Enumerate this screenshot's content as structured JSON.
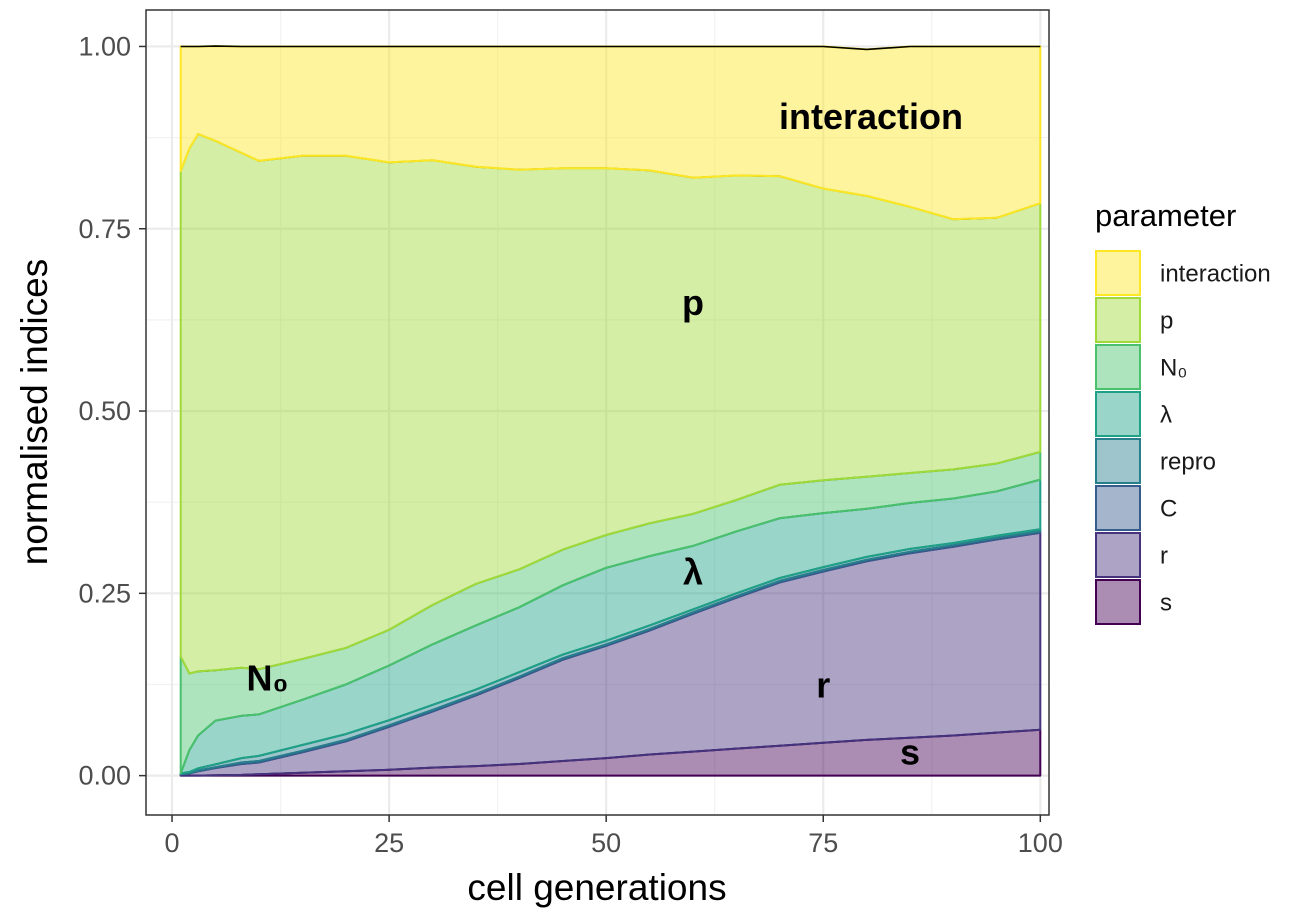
{
  "chart_data": {
    "type": "area",
    "stacked": true,
    "title": "",
    "xlabel": "cell generations",
    "ylabel": "normalised indices",
    "xlim": [
      -3,
      101
    ],
    "ylim": [
      -0.054,
      1.05
    ],
    "x_ticks": [
      0,
      25,
      50,
      75,
      100
    ],
    "x_tick_labels": [
      "0",
      "25",
      "50",
      "75",
      "100"
    ],
    "y_ticks": [
      0,
      0.25,
      0.5,
      0.75,
      1
    ],
    "y_tick_labels": [
      "0.00",
      "0.25",
      "0.50",
      "0.75",
      "1.00"
    ],
    "grid": true,
    "legend": {
      "title": "parameter",
      "position": "right"
    },
    "x": [
      1,
      2,
      3,
      5,
      8,
      10,
      15,
      20,
      25,
      30,
      35,
      40,
      45,
      50,
      55,
      60,
      65,
      70,
      75,
      80,
      85,
      90,
      95,
      100
    ],
    "series": [
      {
        "name": "s",
        "color": "#440154",
        "values": [
          0,
          0,
          0,
          0.0005,
          0.001,
          0.002,
          0.004,
          0.006,
          0.008,
          0.011,
          0.013,
          0.016,
          0.02,
          0.024,
          0.029,
          0.033,
          0.037,
          0.041,
          0.045,
          0.049,
          0.052,
          0.055,
          0.059,
          0.063
        ]
      },
      {
        "name": "r",
        "color": "#46337e",
        "values": [
          0.002,
          0.003,
          0.006,
          0.01,
          0.015,
          0.016,
          0.028,
          0.041,
          0.059,
          0.077,
          0.097,
          0.118,
          0.139,
          0.154,
          0.17,
          0.189,
          0.207,
          0.224,
          0.235,
          0.245,
          0.253,
          0.259,
          0.265,
          0.27
        ]
      },
      {
        "name": "C",
        "color": "#365c8d",
        "values": [
          0,
          0,
          0.001,
          0.001,
          0.002,
          0.002,
          0.002,
          0.002,
          0.002,
          0.002,
          0.002,
          0.002,
          0.002,
          0.002,
          0.002,
          0.002,
          0.002,
          0.002,
          0.002,
          0.002,
          0.002,
          0.002,
          0.002,
          0.002
        ]
      },
      {
        "name": "repro",
        "color": "#277f8e",
        "values": [
          0.001,
          0.002,
          0.003,
          0.004,
          0.006,
          0.007,
          0.008,
          0.008,
          0.007,
          0.007,
          0.006,
          0.006,
          0.005,
          0.005,
          0.005,
          0.004,
          0.004,
          0.004,
          0.004,
          0.004,
          0.004,
          0.003,
          0.003,
          0.003
        ]
      },
      {
        "name": "λ",
        "color": "#1fa187",
        "values": [
          0,
          0.03,
          0.045,
          0.06,
          0.058,
          0.057,
          0.062,
          0.068,
          0.075,
          0.083,
          0.088,
          0.089,
          0.095,
          0.1,
          0.095,
          0.087,
          0.085,
          0.082,
          0.074,
          0.066,
          0.063,
          0.061,
          0.061,
          0.068
        ]
      },
      {
        "name": "N₀",
        "color": "#4ac16d",
        "values": [
          0.16,
          0.105,
          0.088,
          0.069,
          0.066,
          0.062,
          0.056,
          0.05,
          0.049,
          0.054,
          0.057,
          0.052,
          0.049,
          0.045,
          0.045,
          0.044,
          0.043,
          0.046,
          0.045,
          0.044,
          0.041,
          0.04,
          0.038,
          0.038
        ]
      },
      {
        "name": "p",
        "color": "#a0da39",
        "values": [
          0.666,
          0.72,
          0.737,
          0.726,
          0.706,
          0.697,
          0.69,
          0.675,
          0.641,
          0.61,
          0.572,
          0.548,
          0.523,
          0.503,
          0.484,
          0.461,
          0.445,
          0.423,
          0.4,
          0.385,
          0.365,
          0.343,
          0.337,
          0.341
        ]
      },
      {
        "name": "interaction",
        "color": "#fde725",
        "values": [
          0.171,
          0.14,
          0.12,
          0.13,
          0.146,
          0.157,
          0.15,
          0.15,
          0.159,
          0.156,
          0.165,
          0.169,
          0.167,
          0.167,
          0.17,
          0.18,
          0.177,
          0.178,
          0.195,
          0.201,
          0.22,
          0.237,
          0.235,
          0.215
        ]
      }
    ],
    "annotations": [
      {
        "text": "interaction",
        "x": 80.5,
        "y": 0.9
      },
      {
        "text": "p",
        "x": 60,
        "y": 0.645
      },
      {
        "text": "N₀",
        "x": 11,
        "y": 0.13
      },
      {
        "text": "λ",
        "x": 60,
        "y": 0.275
      },
      {
        "text": "r",
        "x": 75,
        "y": 0.12
      },
      {
        "text": "s",
        "x": 85,
        "y": 0.028
      }
    ]
  }
}
